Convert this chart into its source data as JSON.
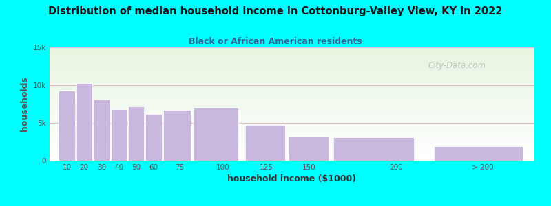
{
  "title": "Distribution of median household income in Cottonburg-Valley View, KY in 2022",
  "subtitle": "Black or African American residents",
  "xlabel": "household income ($1000)",
  "ylabel": "households",
  "title_color": "#1a1a1a",
  "subtitle_color": "#336699",
  "background_outer": "#00ffff",
  "background_inner_top": "#e6f5e0",
  "background_inner_bottom": "#ffffff",
  "bar_color": "#c9b8de",
  "bar_edge_color": "#ffffff",
  "categories": [
    "10",
    "20",
    "30",
    "40",
    "50",
    "60",
    "75",
    "100",
    "125",
    "150",
    "200",
    "> 200"
  ],
  "values": [
    9300,
    10300,
    8100,
    6800,
    7200,
    6200,
    6700,
    7000,
    4700,
    3200,
    3100,
    1900
  ],
  "bar_left_edges": [
    5,
    15,
    25,
    35,
    45,
    55,
    65,
    82,
    112,
    137,
    162,
    220
  ],
  "bar_widths": [
    10,
    10,
    10,
    10,
    10,
    10,
    17,
    28,
    25,
    25,
    50,
    55
  ],
  "xtick_positions": [
    10,
    20,
    30,
    40,
    50,
    60,
    75,
    100,
    125,
    150,
    200,
    250
  ],
  "xtick_labels": [
    "10",
    "20",
    "30",
    "40",
    "50",
    "60",
    "75",
    "100",
    "125",
    "150",
    "200",
    "> 200"
  ],
  "ytick_labels": [
    "0",
    "5k",
    "10k",
    "15k"
  ],
  "ytick_values": [
    0,
    5000,
    10000,
    15000
  ],
  "ylim": [
    0,
    15000
  ],
  "xlim": [
    0,
    280
  ],
  "grid_color": "#e0c0c0",
  "grid_alpha": 1.0,
  "watermark": "City-Data.com"
}
